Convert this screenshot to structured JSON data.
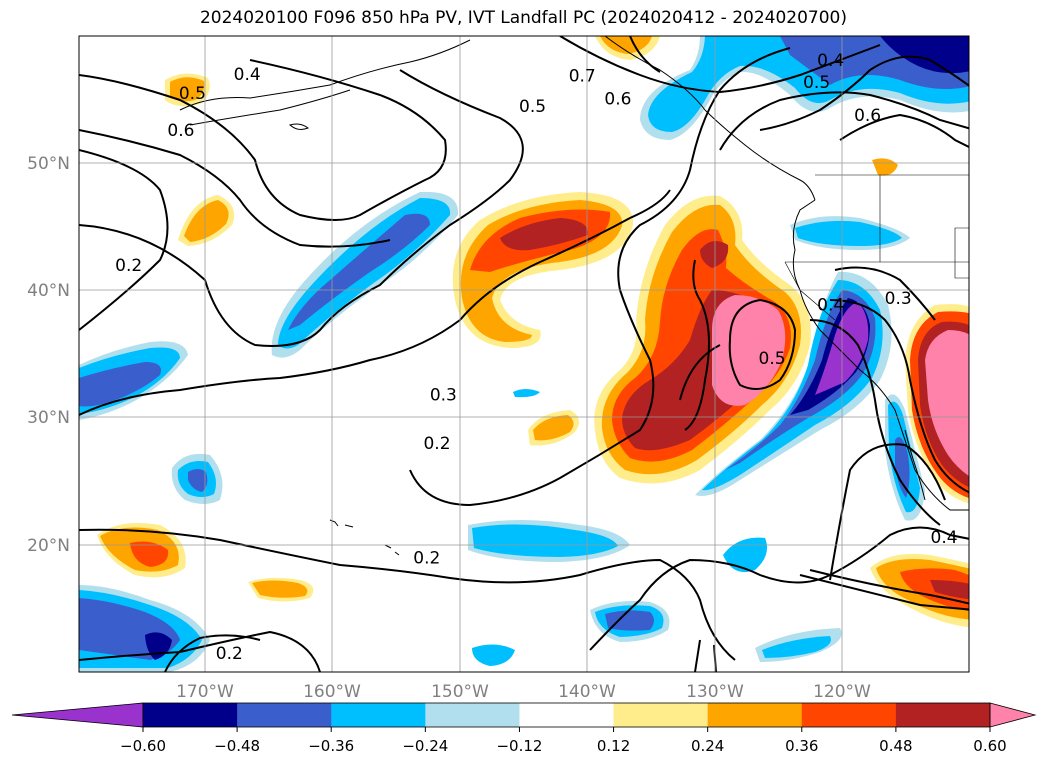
{
  "title": "2024020100 F096 850 hPa PV, IVT Landfall PC (2024020412 - 2024020700)",
  "lat_labels": [
    "50°N",
    "40°N",
    "30°N",
    "20°N"
  ],
  "lon_labels": [
    "170°W",
    "160°W",
    "150°W",
    "140°W",
    "130°W",
    "120°W"
  ],
  "colorbar": {
    "colors": [
      "#9a32cd",
      "#00008b",
      "#3a5fcd",
      "#00bfff",
      "#b2dfee",
      "#ffffff",
      "#ffec8b",
      "#ffa500",
      "#ff4500",
      "#b22222",
      "#ff82ab"
    ],
    "tick_labels": [
      "−0.60",
      "−0.48",
      "−0.36",
      "−0.24",
      "−0.12",
      "0.12",
      "0.24",
      "0.36",
      "0.48",
      "0.60"
    ]
  },
  "pv_contour_labels": [
    {
      "text": "0.4",
      "lon": -166.8,
      "lat": 57.0
    },
    {
      "text": "0.5",
      "lon": -171.1,
      "lat": 55.5
    },
    {
      "text": "0.6",
      "lon": -172.0,
      "lat": 52.6
    },
    {
      "text": "0.2",
      "lon": -176.1,
      "lat": 42.0
    },
    {
      "text": "0.7",
      "lon": -140.5,
      "lat": 56.9
    },
    {
      "text": "0.6",
      "lon": -137.7,
      "lat": 55.1
    },
    {
      "text": "0.5",
      "lon": -144.4,
      "lat": 54.5
    },
    {
      "text": "0.4",
      "lon": -121.0,
      "lat": 58.1
    },
    {
      "text": "0.5",
      "lon": -122.1,
      "lat": 56.4
    },
    {
      "text": "0.6",
      "lon": -118.1,
      "lat": 53.8
    },
    {
      "text": "0.4",
      "lon": -121.0,
      "lat": 38.9
    },
    {
      "text": "0.3",
      "lon": -115.7,
      "lat": 39.4
    },
    {
      "text": "0.5",
      "lon": -125.6,
      "lat": 34.7
    },
    {
      "text": "0.3",
      "lon": -151.4,
      "lat": 31.8
    },
    {
      "text": "0.2",
      "lon": -151.9,
      "lat": 28.0
    },
    {
      "text": "0.2",
      "lon": -152.7,
      "lat": 19.0
    },
    {
      "text": "0.4",
      "lon": -112.1,
      "lat": 20.6
    },
    {
      "text": "0.2",
      "lon": -168.2,
      "lat": 11.5
    }
  ]
}
